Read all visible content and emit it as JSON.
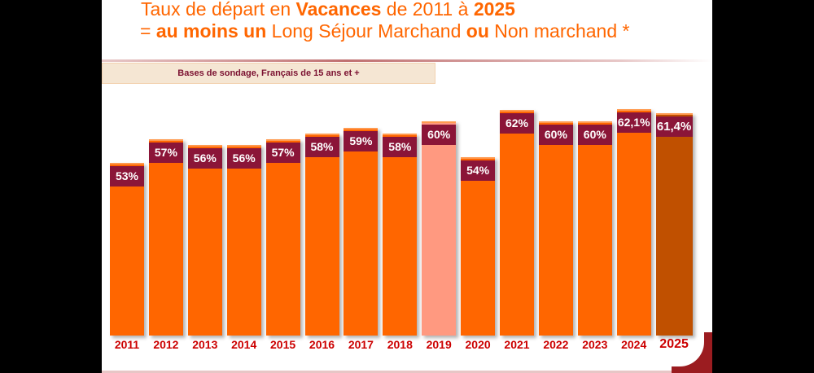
{
  "title": {
    "line1_a": "Taux de départ en ",
    "line1_b": "Vacances",
    "line1_c": " de 2011 à ",
    "line1_d": "2025",
    "line2_a": "= ",
    "line2_b": "au moins un",
    "line2_c": " Long Séjour Marchand ",
    "line2_d": "ou",
    "line2_e": " Non marchand  *"
  },
  "base_note": "Bases de sondage, Français de 15 ans et +",
  "colors": {
    "bar": "#FF6600",
    "highlight_2019": "#FF9980",
    "highlight_2025": "#C05000",
    "label_bg": "#8B1538",
    "year": "#CC0000"
  },
  "chart_data": {
    "type": "bar",
    "title": "Taux de départ en Vacances de 2011 à 2025",
    "categories": [
      "2011",
      "2012",
      "2013",
      "2014",
      "2015",
      "2016",
      "2017",
      "2018",
      "2019",
      "2020",
      "2021",
      "2022",
      "2023",
      "2024",
      "2025"
    ],
    "values": [
      53,
      57,
      56,
      56,
      57,
      58,
      59,
      58,
      60,
      54,
      62,
      60,
      60,
      62.1,
      61.4
    ],
    "labels": [
      "53%",
      "57%",
      "56%",
      "56%",
      "57%",
      "58%",
      "59%",
      "58%",
      "60%",
      "54%",
      "62%",
      "60%",
      "60%",
      "62,1%",
      "61,4%"
    ],
    "xlabel": "",
    "ylabel": "",
    "grid": false
  }
}
